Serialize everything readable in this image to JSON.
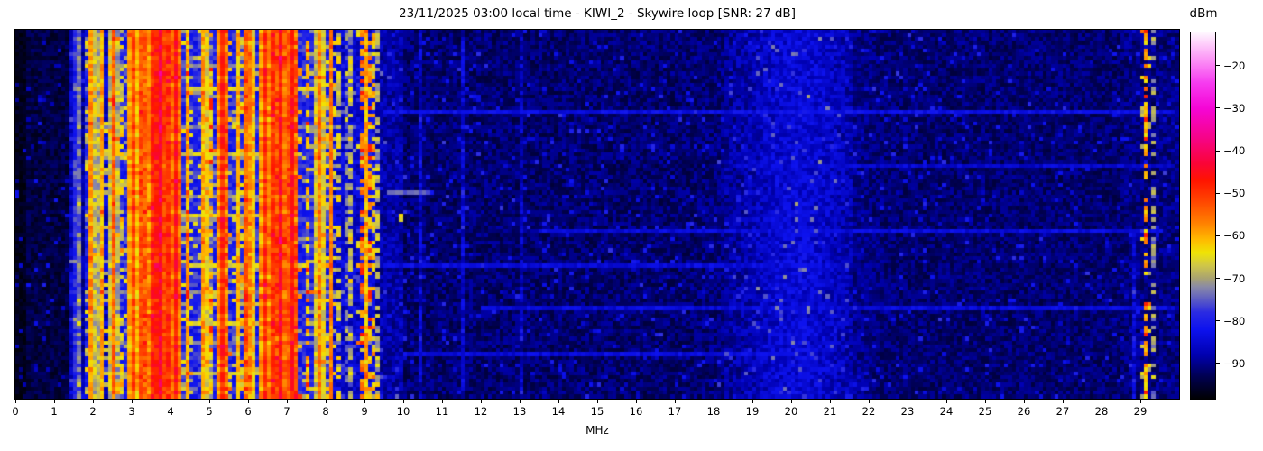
{
  "chart_data": {
    "type": "heatmap",
    "title": "23/11/2025 03:00 local time - KIWI_2 - Skywire loop [SNR: 27 dB]",
    "xlabel": "MHz",
    "ylabel": "",
    "x_range": [
      0,
      30
    ],
    "x_ticks": [
      0,
      1,
      2,
      3,
      4,
      5,
      6,
      7,
      8,
      9,
      10,
      11,
      12,
      13,
      14,
      15,
      16,
      17,
      18,
      19,
      20,
      21,
      22,
      23,
      24,
      25,
      26,
      27,
      28,
      29
    ],
    "y_axis_note": "time, unlabeled",
    "grid": {
      "cols": 300,
      "rows": 96
    },
    "seed": 20251123,
    "speckle_p": 0.05,
    "colorbar": {
      "label": "dBm",
      "ticks": [
        -20,
        -30,
        -40,
        -50,
        -60,
        -70,
        -80,
        -90
      ],
      "vmax": -12.2,
      "vmin": -98.5
    },
    "colormap_stops": [
      [
        -98.5,
        "#000000"
      ],
      [
        -93,
        "#000052"
      ],
      [
        -88,
        "#0000b0"
      ],
      [
        -82,
        "#0d12ee"
      ],
      [
        -78,
        "#2b2be2"
      ],
      [
        -75,
        "#5b5bc4"
      ],
      [
        -72,
        "#8a8aa6"
      ],
      [
        -70,
        "#a8a272"
      ],
      [
        -67,
        "#cfc648"
      ],
      [
        -64,
        "#efe405"
      ],
      [
        -61,
        "#ffbb00"
      ],
      [
        -57,
        "#ff8000"
      ],
      [
        -52,
        "#ff4700"
      ],
      [
        -47,
        "#ff1400"
      ],
      [
        -43,
        "#fa0437"
      ],
      [
        -37,
        "#f60488"
      ],
      [
        -30,
        "#f505d6"
      ],
      [
        -24,
        "#f63cf0"
      ],
      [
        -18,
        "#fc9df6"
      ],
      [
        -12.2,
        "#fff8ff"
      ]
    ],
    "noise_profile": [
      [
        0,
        0.33,
        -96.5,
        1.6
      ],
      [
        0.33,
        1.42,
        -94,
        2.6
      ],
      [
        1.42,
        1.62,
        -86,
        4
      ],
      [
        1.62,
        1.78,
        -89,
        3.5
      ],
      [
        1.78,
        2.28,
        -81,
        4.5
      ],
      [
        2.28,
        2.62,
        -85.5,
        4.5
      ],
      [
        2.62,
        8.15,
        -79.5,
        4.5
      ],
      [
        8.15,
        8.9,
        -85,
        4.2
      ],
      [
        8.9,
        9.35,
        -83,
        4.2
      ],
      [
        9.35,
        10.0,
        -88,
        3.5
      ],
      [
        10.0,
        18.3,
        -91.5,
        3.2
      ],
      [
        18.3,
        21.6,
        -90,
        3.6
      ],
      [
        21.6,
        28.6,
        -91.5,
        3.0
      ],
      [
        28.6,
        30.01,
        -90.5,
        3.2
      ]
    ],
    "bumps": [
      {
        "center": 20.2,
        "sigma": 1.0,
        "amp": 5.5
      }
    ],
    "stripe_bands": [
      [
        1.8,
        2.28,
        10,
        -72,
        -57
      ],
      [
        2.28,
        2.64,
        5,
        -76,
        -63
      ],
      [
        2.64,
        3.3,
        11,
        -70,
        -52
      ],
      [
        3.3,
        4.15,
        13,
        -63,
        -46
      ],
      [
        4.15,
        5.3,
        8,
        -74,
        -57
      ],
      [
        5.3,
        6.45,
        8,
        -71,
        -53
      ],
      [
        6.45,
        7.45,
        11,
        -63,
        -46
      ],
      [
        7.45,
        8.15,
        8,
        -72,
        -57
      ],
      [
        8.15,
        8.9,
        2.5,
        -74,
        -63,
        "dotted"
      ],
      [
        8.9,
        9.33,
        7,
        -70,
        -56,
        "dotted"
      ]
    ],
    "stripes": [
      {
        "f": 1.51,
        "level": -79,
        "style": "solid"
      },
      {
        "f": 1.66,
        "level": -74,
        "style": "solid"
      },
      {
        "f": 1.92,
        "level": -62,
        "style": "solid"
      },
      {
        "f": 2.5,
        "level": -55,
        "style": "solid"
      },
      {
        "f": 3.0,
        "level": -52,
        "style": "solid"
      },
      {
        "f": 3.77,
        "level": -44,
        "style": "solid"
      },
      {
        "f": 3.95,
        "level": -50,
        "style": "solid"
      },
      {
        "f": 4.8,
        "level": -60,
        "style": "solid"
      },
      {
        "f": 5.37,
        "level": -49,
        "style": "solid"
      },
      {
        "f": 6.07,
        "level": -58,
        "style": "solid"
      },
      {
        "f": 6.86,
        "level": -46,
        "style": "solid"
      },
      {
        "f": 7.18,
        "level": -47,
        "style": "solid"
      },
      {
        "f": 7.8,
        "level": -60,
        "style": "solid"
      },
      {
        "f": 8.32,
        "level": -66,
        "style": "dotted"
      },
      {
        "f": 8.62,
        "level": -68,
        "style": "dotted"
      },
      {
        "f": 8.97,
        "level": -56,
        "style": "dotted"
      },
      {
        "f": 9.05,
        "level": -61,
        "style": "solid"
      },
      {
        "f": 9.2,
        "level": -63,
        "style": "dotted"
      },
      {
        "f": 10.45,
        "level": -86,
        "style": "solid"
      },
      {
        "f": 11.55,
        "level": -86,
        "style": "solid"
      },
      {
        "f": 13.05,
        "level": -87,
        "style": "solid"
      },
      {
        "f": 28.85,
        "level": -85,
        "style": "lower"
      },
      {
        "f": 29.12,
        "level": -60,
        "style": "dotted"
      },
      {
        "f": 29.3,
        "level": -71,
        "style": "dotted"
      }
    ],
    "h_streaks": [
      [
        0.1,
        2.6,
        6.4,
        -72
      ],
      [
        0.16,
        4.4,
        7.7,
        -66
      ],
      [
        0.225,
        9.5,
        29.8,
        -83
      ],
      [
        0.27,
        1.8,
        8.3,
        -73
      ],
      [
        0.335,
        2.0,
        7.3,
        -66
      ],
      [
        0.37,
        18.5,
        29.8,
        -85
      ],
      [
        0.445,
        9.7,
        10.6,
        -75
      ],
      [
        0.45,
        4.3,
        8.3,
        -71
      ],
      [
        0.5,
        3.1,
        6.7,
        -66
      ],
      [
        0.55,
        13.5,
        29.5,
        -84
      ],
      [
        0.565,
        2.6,
        7.9,
        -73
      ],
      [
        0.64,
        4.4,
        7.5,
        -66
      ],
      [
        0.645,
        9.5,
        21.0,
        -84
      ],
      [
        0.71,
        1.8,
        8.4,
        -72
      ],
      [
        0.75,
        12.0,
        29.8,
        -84
      ],
      [
        0.8,
        4.5,
        6.3,
        -66
      ],
      [
        0.85,
        2.2,
        8.3,
        -73
      ],
      [
        0.88,
        10.0,
        20.0,
        -84
      ],
      [
        0.93,
        3.0,
        7.0,
        -67
      ]
    ],
    "spots": [
      {
        "f": 9.9,
        "y": 0.5,
        "level": -63
      },
      {
        "f": 9.97,
        "y": 0.52,
        "level": -66
      }
    ]
  }
}
